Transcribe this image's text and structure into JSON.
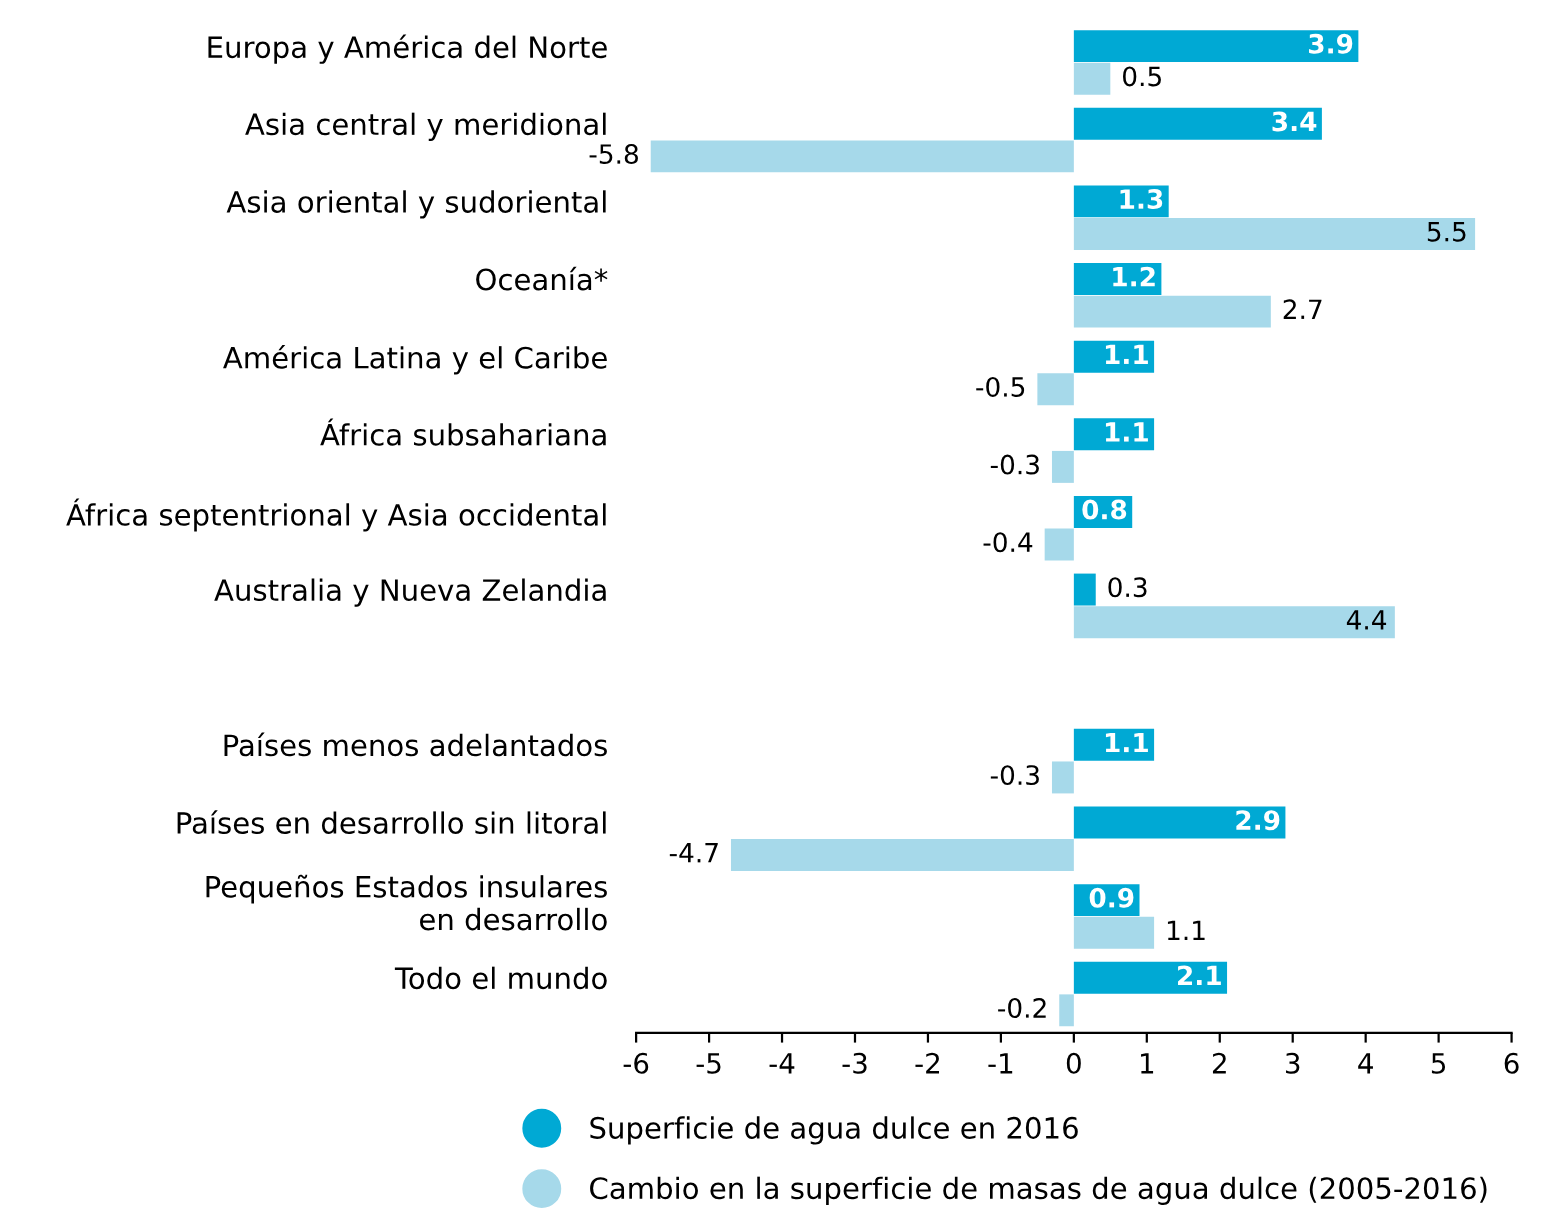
{
  "chart_data": {
    "type": "bar",
    "orientation": "horizontal",
    "categories": [
      "Europa y América del Norte",
      "Asia central y meridional",
      "Asia oriental y sudoriental",
      "Oceanía*",
      "América Latina y el Caribe",
      "África subsahariana",
      "África septentrional y Asia occidental",
      "Australia y Nueva Zelandia",
      null,
      "Países menos adelantados",
      "Países en desarrollo sin litoral",
      "Pequeños Estados insulares\nen desarrollo",
      "Todo el mundo"
    ],
    "series": [
      {
        "name": "Superficie de agua dulce en 2016",
        "color": "#00a9d4",
        "values": [
          3.9,
          3.4,
          1.3,
          1.2,
          1.1,
          1.1,
          0.8,
          0.3,
          null,
          1.1,
          2.9,
          0.9,
          2.1
        ]
      },
      {
        "name": "Cambio en la superficie de masas de agua dulce (2005-2016)",
        "color": "#a6d9ea",
        "values": [
          0.5,
          -5.8,
          5.5,
          2.7,
          -0.5,
          -0.3,
          -0.4,
          4.4,
          null,
          -0.3,
          -4.7,
          1.1,
          -0.2
        ]
      }
    ],
    "xlim": [
      -6,
      6
    ],
    "xticks": [
      -6,
      -5,
      -4,
      -3,
      -2,
      -1,
      0,
      1,
      2,
      3,
      4,
      5,
      6
    ],
    "data_labels": true,
    "grid": false,
    "legend": "bottom"
  }
}
